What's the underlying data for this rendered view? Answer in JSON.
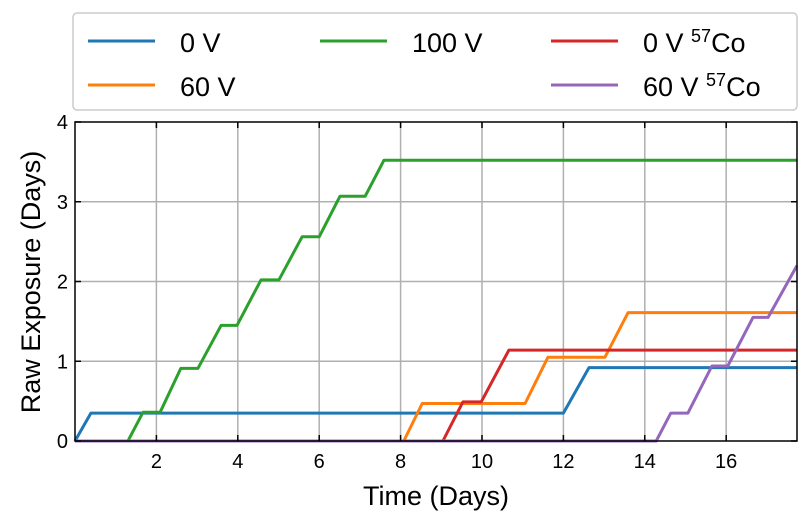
{
  "chart_data": {
    "type": "line",
    "title": "",
    "xlabel": "Time (Days)",
    "ylabel": "Raw Exposure (Days)",
    "xlim": [
      0,
      17.74
    ],
    "ylim": [
      0,
      4
    ],
    "xticks": [
      2,
      4,
      6,
      8,
      10,
      12,
      14,
      16
    ],
    "yticks": [
      0,
      1,
      2,
      3,
      4
    ],
    "grid": true,
    "legend_placement": "top (outside, 3 columns)",
    "series": [
      {
        "name": "0 V",
        "sup": "",
        "color": "#1f77b4",
        "x": [
          0,
          0.39,
          12.0,
          12.63,
          17.74
        ],
        "y": [
          0,
          0.35,
          0.35,
          0.92,
          0.92
        ]
      },
      {
        "name": "60 V",
        "sup": "",
        "color": "#ff7f0e",
        "x": [
          0,
          8.08,
          8.53,
          11.06,
          11.62,
          13.02,
          13.59,
          17.74
        ],
        "y": [
          0,
          0,
          0.47,
          0.47,
          1.05,
          1.05,
          1.61,
          1.61
        ]
      },
      {
        "name": "100 V",
        "sup": "",
        "color": "#2ca02c",
        "x": [
          0,
          1.3,
          1.67,
          2.09,
          2.6,
          3.02,
          3.59,
          3.98,
          4.57,
          5.01,
          5.58,
          6.0,
          6.51,
          7.13,
          7.59,
          17.74
        ],
        "y": [
          0,
          0,
          0.36,
          0.36,
          0.91,
          0.91,
          1.45,
          1.45,
          2.02,
          2.02,
          2.56,
          2.56,
          3.07,
          3.07,
          3.52,
          3.52
        ]
      },
      {
        "name": "0 V ",
        "sup": "57",
        "suffix": "Co",
        "color": "#d62728",
        "x": [
          0,
          9.04,
          9.53,
          9.98,
          10.66,
          17.74
        ],
        "y": [
          0,
          0,
          0.49,
          0.49,
          1.14,
          1.14
        ]
      },
      {
        "name": "60 V ",
        "sup": "57",
        "suffix": "Co",
        "color": "#9467bd",
        "x": [
          0,
          14.28,
          14.64,
          15.06,
          15.65,
          16.04,
          16.66,
          17.03,
          17.74
        ],
        "y": [
          0,
          0,
          0.35,
          0.35,
          0.94,
          0.94,
          1.55,
          1.55,
          2.2
        ]
      }
    ]
  }
}
